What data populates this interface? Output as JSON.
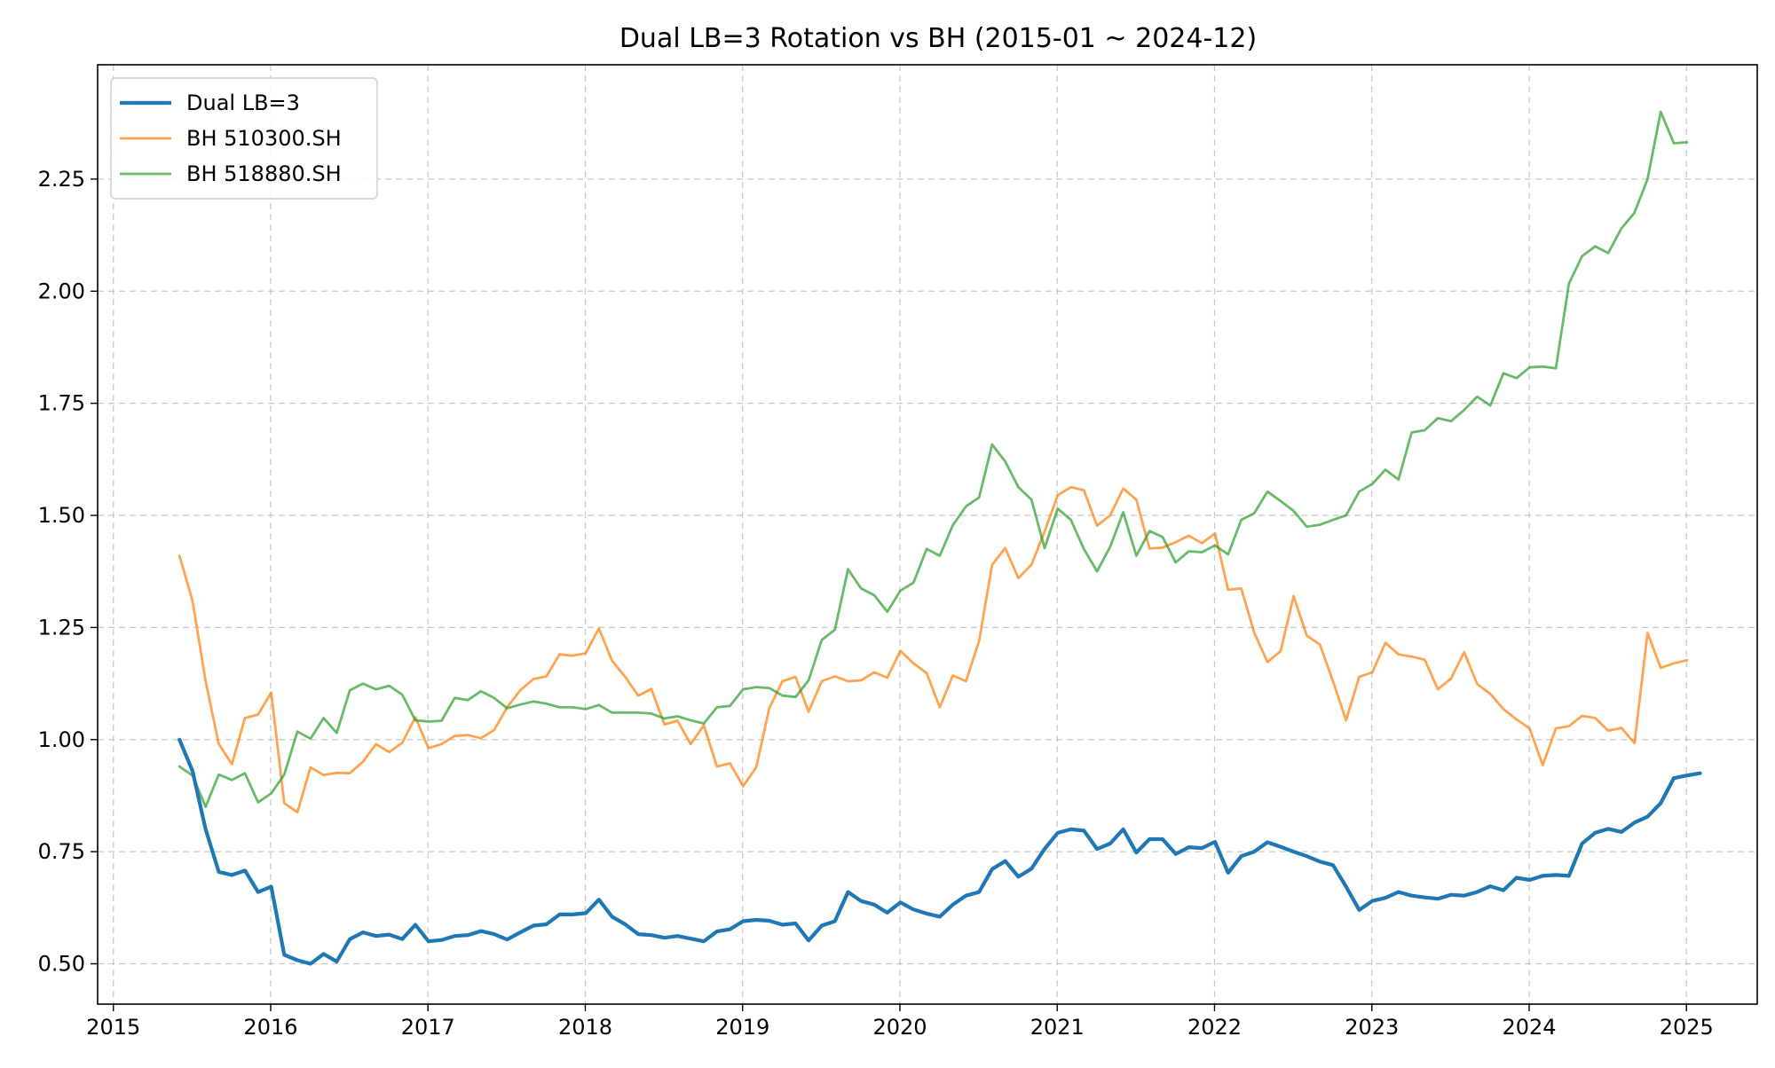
{
  "chart_data": {
    "type": "line",
    "title": "Dual LB=3 Rotation vs BH (2015-01 ~ 2024-12)",
    "xlabel": "",
    "ylabel": "",
    "xlim": [
      2014.9,
      2025.45
    ],
    "ylim": [
      0.41,
      2.505
    ],
    "x_ticks": [
      2015,
      2016,
      2017,
      2018,
      2019,
      2020,
      2021,
      2022,
      2023,
      2024,
      2025
    ],
    "x_tick_labels": [
      "2015",
      "2016",
      "2017",
      "2018",
      "2019",
      "2020",
      "2021",
      "2022",
      "2023",
      "2024",
      "2025"
    ],
    "y_ticks": [
      0.5,
      0.75,
      1.0,
      1.25,
      1.5,
      1.75,
      2.0,
      2.25
    ],
    "y_tick_labels": [
      "0.50",
      "0.75",
      "1.00",
      "1.25",
      "1.50",
      "1.75",
      "2.00",
      "2.25"
    ],
    "grid": true,
    "legend_position": "top-left",
    "x_start": 2015.42,
    "x_step": 0.08333,
    "series": [
      {
        "name": "Dual LB=3",
        "color": "#1f77b4",
        "values": [
          1.0,
          0.93,
          0.8,
          0.705,
          0.698,
          0.708,
          0.66,
          0.672,
          0.52,
          0.508,
          0.5,
          0.522,
          0.505,
          0.555,
          0.57,
          0.562,
          0.565,
          0.555,
          0.587,
          0.55,
          0.553,
          0.562,
          0.564,
          0.573,
          0.566,
          0.554,
          0.57,
          0.585,
          0.588,
          0.61,
          0.61,
          0.613,
          0.643,
          0.605,
          0.588,
          0.566,
          0.564,
          0.558,
          0.562,
          0.556,
          0.55,
          0.572,
          0.577,
          0.595,
          0.598,
          0.596,
          0.587,
          0.59,
          0.552,
          0.585,
          0.595,
          0.66,
          0.64,
          0.632,
          0.614,
          0.637,
          0.621,
          0.612,
          0.605,
          0.632,
          0.652,
          0.66,
          0.711,
          0.729,
          0.694,
          0.712,
          0.756,
          0.792,
          0.8,
          0.797,
          0.756,
          0.768,
          0.8,
          0.748,
          0.778,
          0.778,
          0.745,
          0.76,
          0.758,
          0.772,
          0.703,
          0.74,
          0.75,
          0.771,
          0.761,
          0.75,
          0.74,
          0.728,
          0.72,
          0.672,
          0.62,
          0.64,
          0.647,
          0.66,
          0.652,
          0.648,
          0.645,
          0.654,
          0.652,
          0.66,
          0.673,
          0.664,
          0.692,
          0.687,
          0.696,
          0.698,
          0.696,
          0.768,
          0.792,
          0.801,
          0.794,
          0.815,
          0.828,
          0.858,
          0.914,
          0.92,
          0.925
        ]
      },
      {
        "name": "BH 510300.SH",
        "color": "#ff7f0e",
        "values": [
          1.41,
          1.31,
          1.13,
          0.99,
          0.945,
          1.048,
          1.056,
          1.105,
          0.858,
          0.838,
          0.938,
          0.921,
          0.926,
          0.925,
          0.951,
          0.99,
          0.972,
          0.993,
          1.05,
          0.981,
          0.99,
          1.008,
          1.01,
          1.003,
          1.021,
          1.072,
          1.11,
          1.135,
          1.141,
          1.19,
          1.187,
          1.193,
          1.248,
          1.176,
          1.14,
          1.098,
          1.113,
          1.034,
          1.042,
          0.99,
          1.032,
          0.94,
          0.947,
          0.896,
          0.938,
          1.07,
          1.13,
          1.14,
          1.062,
          1.13,
          1.141,
          1.13,
          1.132,
          1.15,
          1.138,
          1.198,
          1.17,
          1.148,
          1.072,
          1.143,
          1.13,
          1.22,
          1.39,
          1.427,
          1.36,
          1.39,
          1.464,
          1.545,
          1.563,
          1.556,
          1.477,
          1.5,
          1.56,
          1.535,
          1.426,
          1.428,
          1.44,
          1.455,
          1.438,
          1.46,
          1.334,
          1.337,
          1.238,
          1.173,
          1.197,
          1.32,
          1.232,
          1.212,
          1.13,
          1.043,
          1.14,
          1.15,
          1.216,
          1.19,
          1.185,
          1.178,
          1.112,
          1.136,
          1.195,
          1.124,
          1.102,
          1.068,
          1.045,
          1.025,
          0.943,
          1.025,
          1.03,
          1.053,
          1.048,
          1.02,
          1.026,
          0.992,
          1.238,
          1.16,
          1.17,
          1.177
        ]
      },
      {
        "name": "BH 518880.SH",
        "color": "#2ca02c",
        "values": [
          0.94,
          0.92,
          0.85,
          0.922,
          0.91,
          0.925,
          0.86,
          0.88,
          0.922,
          1.018,
          1.002,
          1.048,
          1.015,
          1.11,
          1.125,
          1.112,
          1.12,
          1.1,
          1.043,
          1.04,
          1.042,
          1.093,
          1.088,
          1.108,
          1.093,
          1.07,
          1.078,
          1.085,
          1.08,
          1.072,
          1.072,
          1.068,
          1.077,
          1.06,
          1.06,
          1.06,
          1.058,
          1.047,
          1.052,
          1.043,
          1.036,
          1.072,
          1.075,
          1.112,
          1.117,
          1.115,
          1.098,
          1.095,
          1.132,
          1.222,
          1.245,
          1.38,
          1.337,
          1.322,
          1.285,
          1.332,
          1.35,
          1.425,
          1.41,
          1.478,
          1.52,
          1.54,
          1.658,
          1.62,
          1.563,
          1.535,
          1.427,
          1.515,
          1.49,
          1.425,
          1.375,
          1.43,
          1.507,
          1.41,
          1.465,
          1.452,
          1.395,
          1.42,
          1.418,
          1.433,
          1.413,
          1.49,
          1.505,
          1.553,
          1.532,
          1.51,
          1.475,
          1.479,
          1.49,
          1.5,
          1.553,
          1.57,
          1.602,
          1.58,
          1.685,
          1.69,
          1.717,
          1.71,
          1.735,
          1.765,
          1.745,
          1.817,
          1.806,
          1.83,
          1.832,
          1.828,
          2.017,
          2.078,
          2.1,
          2.085,
          2.14,
          2.175,
          2.25,
          2.4,
          2.33,
          2.332
        ]
      }
    ]
  }
}
